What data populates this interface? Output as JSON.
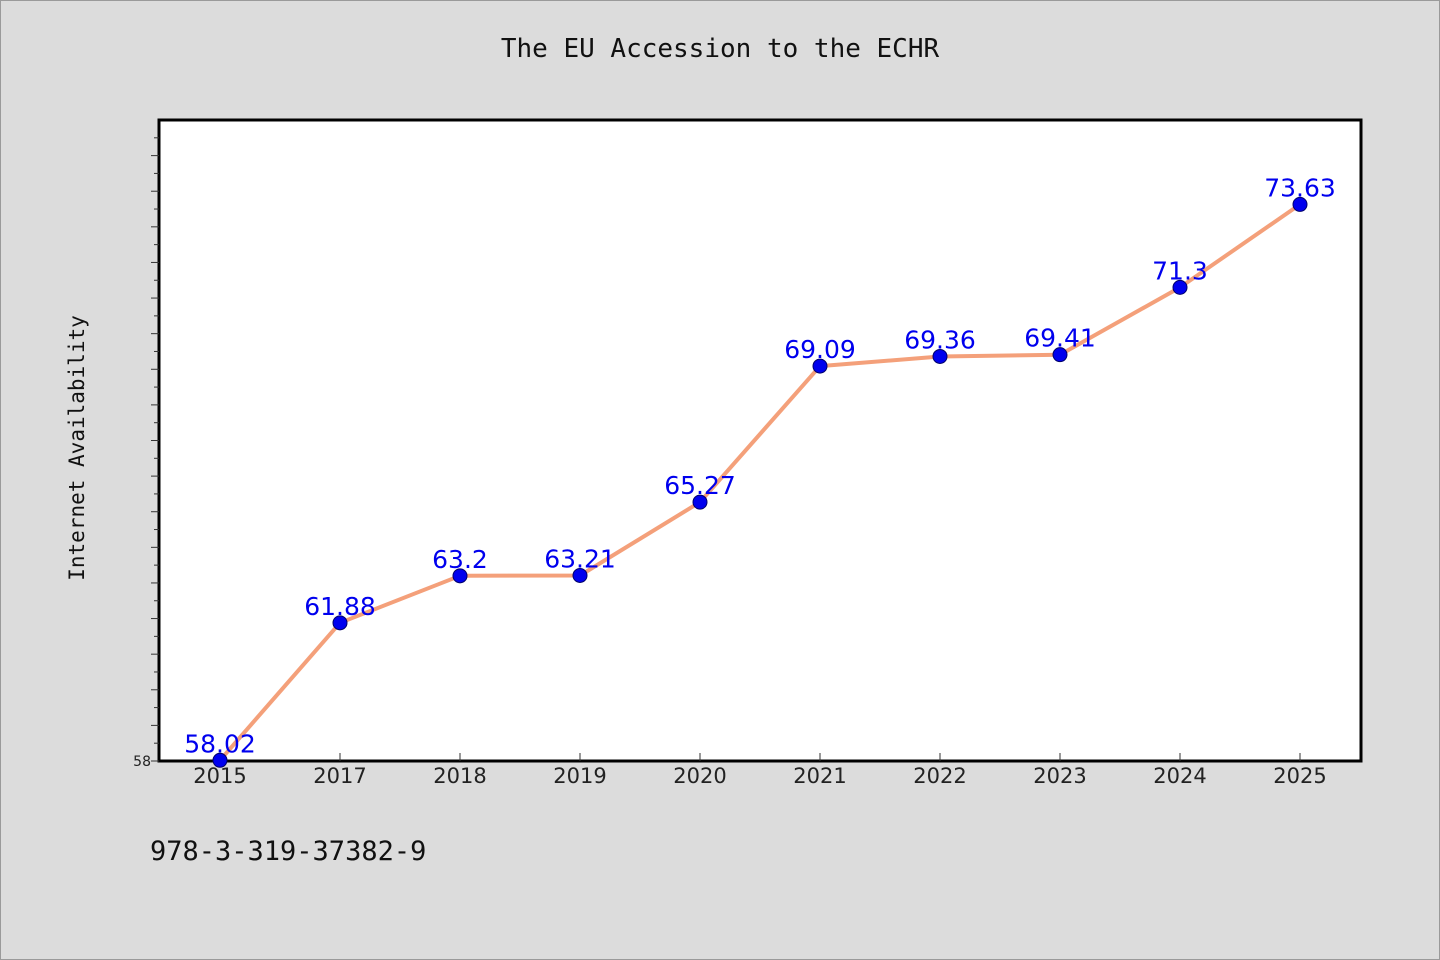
{
  "chart_data": {
    "type": "line",
    "title": "The EU Accession to the ECHR",
    "xlabel": "",
    "ylabel": "Internet Availability",
    "categories": [
      "2015",
      "2017",
      "2018",
      "2019",
      "2020",
      "2021",
      "2022",
      "2023",
      "2024",
      "2025"
    ],
    "series": [
      {
        "values": [
          58.02,
          61.88,
          63.2,
          63.21,
          65.27,
          69.09,
          69.36,
          69.41,
          71.3,
          73.63
        ]
      }
    ],
    "data_labels": [
      "58.02",
      "61.88",
      "63.2",
      "63.21",
      "65.27",
      "69.09",
      "69.36",
      "69.41",
      "71.3",
      "73.63"
    ],
    "ylim": [
      58,
      76
    ],
    "yticks_labeled": [
      "58"
    ],
    "grid": false,
    "legend": "none",
    "line_color": "#f4a07a",
    "marker_color": "#0000ee",
    "label_color": "#0000ee"
  },
  "footnote": "978-3-319-37382-9"
}
